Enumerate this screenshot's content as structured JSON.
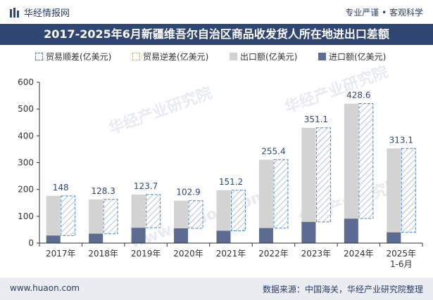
{
  "header": {
    "brand": "华经情报网",
    "tagline": "专业严谨 • 客观科学"
  },
  "title": "2017-2025年6月新疆维吾尔自治区商品收发货人所在地进出口差额",
  "legend": [
    {
      "label": "贸易顺差(亿美元)",
      "kind": "surplus"
    },
    {
      "label": "贸易逆差(亿美元)",
      "kind": "deficit"
    },
    {
      "label": "出口额(亿美元)",
      "kind": "export"
    },
    {
      "label": "进口额(亿美元)",
      "kind": "import"
    }
  ],
  "watermarks": [
    "华经产业研究院",
    "www.huaon.com"
  ],
  "footer": {
    "left": "www.huaon.com",
    "right": "数据来源：中国海关，华经产业研究院整理"
  },
  "colors": {
    "title_bg": "#2f4673",
    "export": "#d3d3d3",
    "import": "#5c6b92",
    "surplus_stroke": "#4a86c5",
    "deficit_stroke": "#e5b83a",
    "label": "#2f4673"
  },
  "chart_data": {
    "type": "bar",
    "categories": [
      "2017年",
      "2018年",
      "2019年",
      "2020年",
      "2021年",
      "2022年",
      "2023年",
      "2024年",
      "2025年\n1-6月"
    ],
    "ylim": [
      0,
      600
    ],
    "yticks": [
      0,
      100,
      200,
      300,
      400,
      500,
      600
    ],
    "series": [
      {
        "name": "出口额(亿美元)",
        "values": [
          176,
          163,
          181,
          158,
          197,
          311,
          430,
          520,
          353
        ]
      },
      {
        "name": "进口额(亿美元)",
        "values": [
          28,
          35,
          57,
          55,
          46,
          56,
          79,
          91,
          40
        ]
      },
      {
        "name": "贸易顺差(亿美元)",
        "values": [
          148,
          128.3,
          123.7,
          102.9,
          151.2,
          255.4,
          351.1,
          428.6,
          313.1
        ]
      }
    ],
    "data_labels": [
      "148",
      "128.3",
      "123.7",
      "102.9",
      "151.2",
      "255.4",
      "351.1",
      "428.6",
      "313.1"
    ],
    "grid": false,
    "legend_position": "top"
  }
}
